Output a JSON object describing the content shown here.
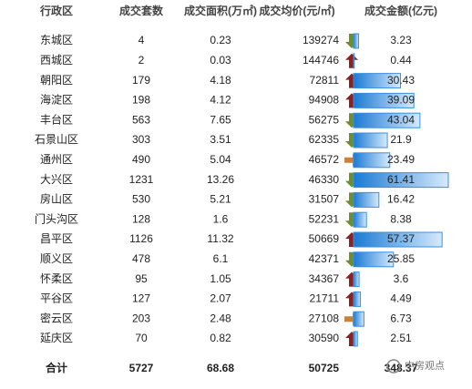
{
  "table": {
    "header": [
      "行政区",
      "成交套数",
      "成交面积(万㎡)",
      "成交均价(元/㎡)",
      "成交金额(亿元)"
    ],
    "rows": [
      [
        "东城区",
        4,
        0.23,
        139274,
        3.23
      ],
      [
        "西城区",
        2,
        0.03,
        144746,
        0.44
      ],
      [
        "朝阳区",
        179,
        4.18,
        72811,
        30.43
      ],
      [
        "海淀区",
        198,
        4.12,
        94908,
        39.09
      ],
      [
        "丰台区",
        563,
        7.65,
        56275,
        43.04
      ],
      [
        "石景山区",
        303,
        3.51,
        62335,
        21.9
      ],
      [
        "通州区",
        490,
        5.04,
        46572,
        23.49
      ],
      [
        "大兴区",
        1231,
        13.26,
        46330,
        61.41
      ],
      [
        "房山区",
        530,
        5.21,
        31507,
        16.42
      ],
      [
        "门头沟区",
        128,
        1.6,
        52231,
        8.38
      ],
      [
        "昌平区",
        1126,
        11.32,
        50669,
        57.37
      ],
      [
        "顺义区",
        478,
        6.1,
        42371,
        25.85
      ],
      [
        "怀柔区",
        95,
        1.05,
        34367,
        3.6
      ],
      [
        "平谷区",
        127,
        2.07,
        21711,
        4.49
      ],
      [
        "密云区",
        203,
        2.48,
        27108,
        6.73
      ],
      [
        "延庆区",
        70,
        0.82,
        30590,
        2.51
      ]
    ],
    "trends": [
      "down",
      "up",
      "up",
      "up",
      "down",
      "down",
      "flat",
      "down",
      "down",
      "down",
      "up",
      "down",
      "up",
      "up",
      "flat",
      "up"
    ],
    "total": [
      "合计",
      5727,
      68.68,
      50725,
      348.37
    ],
    "watermark": "中房观点"
  }
}
